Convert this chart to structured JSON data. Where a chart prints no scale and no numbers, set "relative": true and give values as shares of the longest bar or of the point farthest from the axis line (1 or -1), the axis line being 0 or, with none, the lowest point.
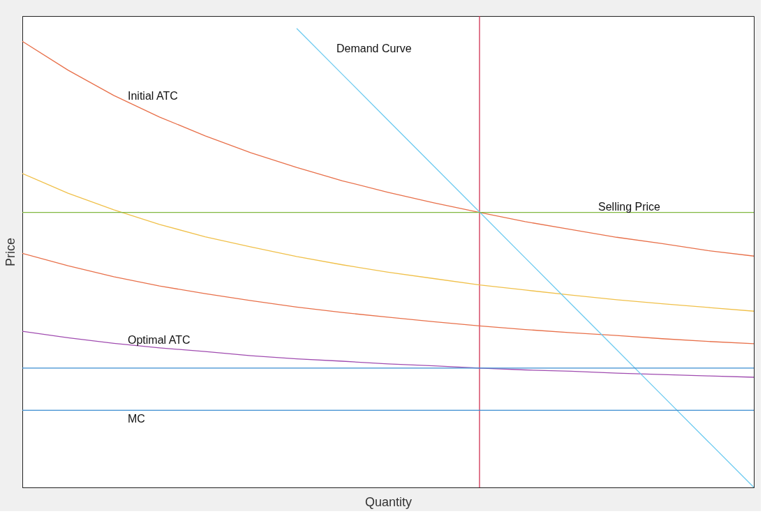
{
  "chart_data": {
    "type": "line",
    "relative": true,
    "xlabel": "Quantity",
    "ylabel": "Price",
    "marker": "none",
    "line_style": "solid",
    "categories": [
      null,
      null,
      null,
      null,
      null,
      null,
      null,
      null,
      null,
      null,
      null,
      null,
      null,
      null,
      null,
      null,
      null
    ],
    "series": [
      {
        "name": "Initial ATC",
        "color": "#e8704a",
        "values": [
          0.972,
          0.909,
          0.854,
          0.807,
          0.766,
          0.729,
          0.697,
          0.668,
          0.643,
          0.62,
          0.599,
          0.579,
          0.562,
          0.545,
          0.531,
          0.516,
          0.504
        ]
      },
      {
        "color": "#f0c04a",
        "values": [
          0.684,
          0.641,
          0.605,
          0.573,
          0.546,
          0.524,
          0.503,
          0.485,
          0.469,
          0.455,
          0.441,
          0.43,
          0.419,
          0.409,
          0.4,
          0.392,
          0.384
        ]
      },
      {
        "color": "#e8704a",
        "values": [
          0.51,
          0.483,
          0.459,
          0.439,
          0.422,
          0.407,
          0.393,
          0.381,
          0.371,
          0.361,
          0.352,
          0.344,
          0.337,
          0.331,
          0.324,
          0.318,
          0.313
        ]
      },
      {
        "name": "Optimal ATC",
        "color": "#a04cb0",
        "values": [
          0.34,
          0.326,
          0.314,
          0.304,
          0.296,
          0.287,
          0.28,
          0.275,
          0.269,
          0.265,
          0.26,
          0.256,
          0.253,
          0.249,
          0.246,
          0.243,
          0.24
        ]
      },
      {
        "name": "Demand Curve",
        "color": "#6ccaf0",
        "values": [
          null,
          null,
          null,
          null,
          null,
          null,
          1,
          0.9,
          0.8,
          0.7,
          0.6,
          0.5,
          0.4,
          0.3,
          0.2,
          0.1,
          0
        ]
      }
    ],
    "ref_lines": [
      {
        "axis": "y",
        "value": 0.599,
        "color": "#80b840",
        "label": "Selling Price"
      },
      {
        "axis": "y",
        "value": 0.26,
        "color": "#3a8cd0"
      },
      {
        "axis": "y",
        "value": 0.168,
        "color": "#3a8cd0",
        "label": "MC"
      }
    ]
  }
}
